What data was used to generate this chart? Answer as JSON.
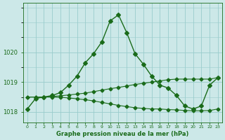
{
  "title": "Graphe pression niveau de la mer (hPa)",
  "bg_color": "#cce8e8",
  "grid_color": "#99cccc",
  "line_color": "#1a6b1a",
  "x_labels": [
    "0",
    "1",
    "2",
    "3",
    "4",
    "5",
    "6",
    "7",
    "8",
    "9",
    "10",
    "11",
    "12",
    "13",
    "14",
    "15",
    "16",
    "17",
    "18",
    "19",
    "20",
    "21",
    "22",
    "23"
  ],
  "x_values": [
    0,
    1,
    2,
    3,
    4,
    5,
    6,
    7,
    8,
    9,
    10,
    11,
    12,
    13,
    14,
    15,
    16,
    17,
    18,
    19,
    20,
    21,
    22,
    23
  ],
  "line_main": [
    1018.1,
    1018.45,
    1018.5,
    1018.55,
    1018.65,
    1018.9,
    1019.2,
    1019.65,
    1019.95,
    1020.35,
    1021.05,
    1021.25,
    1020.65,
    1019.95,
    1019.6,
    1019.2,
    1018.9,
    1018.8,
    1018.55,
    1018.2,
    1018.1,
    1018.2,
    1018.9,
    1019.15
  ],
  "line_rising": [
    1018.5,
    1018.5,
    1018.5,
    1018.52,
    1018.54,
    1018.57,
    1018.6,
    1018.63,
    1018.68,
    1018.73,
    1018.78,
    1018.82,
    1018.87,
    1018.92,
    1018.96,
    1019.0,
    1019.04,
    1019.08,
    1019.1,
    1019.1,
    1019.1,
    1019.1,
    1019.1,
    1019.15
  ],
  "line_falling": [
    1018.5,
    1018.5,
    1018.5,
    1018.5,
    1018.49,
    1018.47,
    1018.44,
    1018.41,
    1018.37,
    1018.32,
    1018.27,
    1018.22,
    1018.18,
    1018.14,
    1018.12,
    1018.1,
    1018.1,
    1018.08,
    1018.07,
    1018.05,
    1018.04,
    1018.04,
    1018.05,
    1018.1
  ],
  "ylim_min": 1017.65,
  "ylim_max": 1021.65,
  "yticks": [
    1018,
    1019,
    1020
  ],
  "markersize": 2.5
}
